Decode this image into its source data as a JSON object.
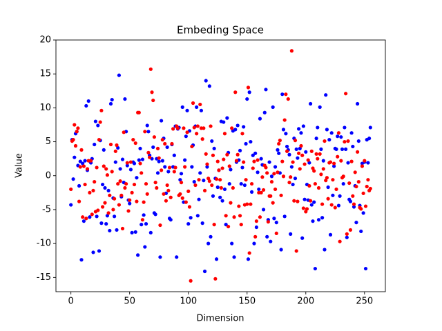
{
  "chart_data": {
    "type": "scatter",
    "title": "Embeding Space",
    "x_label": "Dimension",
    "y_label": "Value",
    "x": [
      0,
      1,
      2,
      3,
      4,
      5,
      6,
      7,
      8,
      9,
      10,
      11,
      12,
      13,
      14,
      15,
      16,
      17,
      18,
      19,
      20,
      21,
      22,
      23,
      24,
      25,
      26,
      27,
      28,
      29,
      30,
      31,
      32,
      33,
      34,
      35,
      36,
      37,
      38,
      39,
      40,
      41,
      42,
      43,
      44,
      45,
      46,
      47,
      48,
      49,
      50,
      51,
      52,
      53,
      54,
      55,
      56,
      57,
      58,
      59,
      60,
      61,
      62,
      63,
      64,
      65,
      66,
      67,
      68,
      69,
      70,
      71,
      72,
      73,
      74,
      75,
      76,
      77,
      78,
      79,
      80,
      81,
      82,
      83,
      84,
      85,
      86,
      87,
      88,
      89,
      90,
      91,
      92,
      93,
      94,
      95,
      96,
      97,
      98,
      99,
      100,
      101,
      102,
      103,
      104,
      105,
      106,
      107,
      108,
      109,
      110,
      111,
      112,
      113,
      114,
      115,
      116,
      117,
      118,
      119,
      120,
      121,
      122,
      123,
      124,
      125,
      126,
      127,
      128,
      129,
      130,
      131,
      132,
      133,
      134,
      135,
      136,
      137,
      138,
      139,
      140,
      141,
      142,
      143,
      144,
      145,
      146,
      147,
      148,
      149,
      150,
      151,
      152,
      153,
      154,
      155,
      156,
      157,
      158,
      159,
      160,
      161,
      162,
      163,
      164,
      165,
      166,
      167,
      168,
      169,
      170,
      171,
      172,
      173,
      174,
      175,
      176,
      177,
      178,
      179,
      180,
      181,
      182,
      183,
      184,
      185,
      186,
      187,
      188,
      189,
      190,
      191,
      192,
      193,
      194,
      195,
      196,
      197,
      198,
      199,
      200,
      201,
      202,
      203,
      204,
      205,
      206,
      207,
      208,
      209,
      210,
      211,
      212,
      213,
      214,
      215,
      216,
      217,
      218,
      219,
      220,
      221,
      222,
      223,
      224,
      225,
      226,
      227,
      228,
      229,
      230,
      231,
      232,
      233,
      234,
      235,
      236,
      237,
      238,
      239,
      240,
      241,
      242,
      243,
      244,
      245,
      246,
      247,
      248,
      249,
      250,
      251,
      252,
      253,
      254,
      255
    ],
    "series": [
      {
        "color": "#0000ff",
        "values": [
          -4.3,
          5.3,
          -0.5,
          2.7,
          6.2,
          6.5,
          1.5,
          -1.5,
          2.1,
          -12.4,
          1.8,
          -6.7,
          2.2,
          10.3,
          0.8,
          11.0,
          -6.1,
          1.9,
          2.5,
          -11.3,
          4.6,
          8.0,
          -6.0,
          7.4,
          -11.1,
          5.2,
          -7.0,
          -1.3,
          3.8,
          -1.8,
          -7.1,
          -5.9,
          -2.2,
          -8.1,
          10.6,
          11.2,
          -3.3,
          -6.0,
          2.0,
          -8.0,
          4.1,
          14.8,
          1.0,
          -3.1,
          2.4,
          -1.0,
          11.3,
          6.5,
          1.5,
          -3.6,
          -4.1,
          0.9,
          -8.4,
          2.0,
          1.8,
          -8.3,
          -0.3,
          -11.7,
          2.3,
          4.0,
          -7.2,
          2.4,
          -5.8,
          -10.5,
          -7.1,
          7.4,
          6.5,
          3.0,
          -8.4,
          2.5,
          4.2,
          -5.5,
          -5.7,
          2.5,
          0.4,
          2.1,
          -12.0,
          8.1,
          2.2,
          5.5,
          1.3,
          -2.6,
          4.2,
          0.6,
          -6.3,
          -6.5,
          4.6,
          1.3,
          3.0,
          7.3,
          -12.0,
          6.9,
          7.1,
          -0.6,
          0.3,
          10.1,
          -3.9,
          2.3,
          5.8,
          9.6,
          -7.1,
          6.6,
          -6.2,
          1.3,
          4.5,
          -0.9,
          7.3,
          10.1,
          -5.9,
          -3.5,
          0.4,
          9.6,
          -7.0,
          -0.7,
          -14.1,
          14.0,
          1.3,
          -10.0,
          13.2,
          -9.0,
          5.1,
          -3.0,
          4.0,
          -0.4,
          -12.3,
          -1.7,
          0.8,
          -3.2,
          8.0,
          -3.7,
          7.9,
          -2.0,
          -7.2,
          8.5,
          3.4,
          -1.2,
          0.9,
          -10.0,
          6.6,
          -12.0,
          6.8,
          2.0,
          7.4,
          2.3,
          3.7,
          -1.2,
          1.2,
          7.2,
          -1.4,
          4.7,
          11.3,
          -12.3,
          12.3,
          5.0,
          -2.4,
          3.0,
          -10.0,
          3.3,
          -7.6,
          0.5,
          -2.0,
          8.4,
          2.5,
          1.6,
          -5.0,
          9.3,
          12.7,
          -9.0,
          -6.5,
          2.0,
          -9.7,
          -0.1,
          10.1,
          -6.3,
          1.3,
          -6.9,
          3.8,
          3.3,
          0.4,
          -10.9,
          12.0,
          6.8,
          -6.0,
          6.2,
          4.3,
          3.8,
          3.1,
          -8.6,
          1.3,
          -1.3,
          5.5,
          -0.4,
          3.9,
          2.6,
          6.9,
          4.0,
          6.3,
          -9.2,
          7.3,
          -3.5,
          3.5,
          -1.3,
          -3.6,
          1.9,
          10.6,
          -4.3,
          -6.7,
          -3.9,
          -13.7,
          5.5,
          7.1,
          -6.5,
          10.1,
          3.9,
          -6.2,
          2.2,
          -10.9,
          11.9,
          6.8,
          -1.7,
          5.3,
          -8.7,
          6.3,
          -2.9,
          1.4,
          4.0,
          3.9,
          5.8,
          -4.4,
          -3.0,
          5.7,
          3.9,
          -1.2,
          7.1,
          3.9,
          -9.1,
          1.9,
          -3.5,
          -3.8,
          6.3,
          4.3,
          -4.6,
          -1.5,
          -6.9,
          10.6,
          5.1,
          -4.4,
          -8.2,
          1.8,
          -5.5,
          2.0,
          -13.7,
          5.3,
          1.9,
          5.5,
          7.1
        ]
      },
      {
        "color": "#ff0000",
        "values": [
          -2.0,
          5.1,
          5.3,
          7.5,
          4.4,
          6.5,
          7.0,
          -3.8,
          1.3,
          3.8,
          -6.1,
          1.4,
          -1.3,
          -6.3,
          1.0,
          2.2,
          -2.5,
          2.2,
          -5.7,
          -2.2,
          -0.9,
          -5.3,
          1.2,
          -5.1,
          5.3,
          7.9,
          9.6,
          -4.6,
          1.4,
          -4.0,
          1.0,
          0.1,
          -5.5,
          -2.9,
          4.6,
          0.6,
          -5.0,
          -3.4,
          3.6,
          4.5,
          -1.2,
          -4.3,
          -0.8,
          -2.9,
          -7.8,
          6.4,
          -1.8,
          -1.2,
          1.9,
          -5.2,
          -3.6,
          2.0,
          -2.5,
          5.3,
          -1.3,
          4.8,
          -3.8,
          9.3,
          9.3,
          1.8,
          0.4,
          -6.5,
          -3.9,
          6.5,
          -1.2,
          -2.7,
          3.4,
          2.7,
          15.7,
          12.3,
          11.1,
          5.7,
          -1.0,
          -1.8,
          4.0,
          2.6,
          -7.3,
          0.8,
          5.3,
          -2.7,
          4.7,
          -3.7,
          -1.4,
          -2.2,
          1.2,
          -3.2,
          4.7,
          6.9,
          0.6,
          1.2,
          7.3,
          7.0,
          -2.9,
          -2.7,
          -1.0,
          -3.3,
          7.0,
          1.3,
          -3.9,
          6.4,
          -2.3,
          -4.6,
          -15.5,
          4.3,
          10.7,
          7.1,
          -1.4,
          6.2,
          7.3,
          -0.6,
          10.5,
          7.0,
          5.4,
          7.0,
          -2.2,
          3.2,
          1.7,
          -0.4,
          -0.8,
          7.3,
          -1.4,
          3.0,
          -7.2,
          -15.2,
          -0.5,
          2.1,
          0.8,
          -0.6,
          -1.8,
          1.1,
          2.4,
          6.2,
          -5.9,
          3.1,
          -7.5,
          1.4,
          -4.0,
          7.0,
          -1.8,
          -6.1,
          12.3,
          2.2,
          3.1,
          -4.5,
          -5.9,
          -7.2,
          6.2,
          2.0,
          -4.3,
          -0.6,
          -4.2,
          13.0,
          -11.4,
          -4.2,
          -1.2,
          1.1,
          2.1,
          -9.0,
          -6.7,
          2.3,
          -2.5,
          -6.1,
          -2.5,
          -0.2,
          -2.1,
          1.5,
          1.2,
          0.4,
          -6.8,
          -3.0,
          -3.0,
          -0.9,
          -4.0,
          0.3,
          -2.0,
          -8.5,
          0.5,
          4.7,
          5.2,
          -2.9,
          2.1,
          -0.1,
          8.2,
          12.0,
          3.6,
          11.3,
          -1.0,
          -0.2,
          18.4,
          2.0,
          -3.7,
          5.2,
          -11.1,
          -3.8,
          3.3,
          1.0,
          4.4,
          3.0,
          -4.8,
          1.7,
          -5.3,
          -4.9,
          2.3,
          -1.5,
          -3.7,
          3.6,
          1.1,
          0.7,
          -1.2,
          3.2,
          2.5,
          -1.8,
          3.2,
          0.2,
          -4.2,
          1.0,
          5.1,
          -0.7,
          -0.3,
          -3.4,
          1.9,
          2.0,
          -4.3,
          -0.6,
          1.8,
          -4.7,
          -2.0,
          2.8,
          6.3,
          -9.7,
          2.2,
          -0.3,
          -0.1,
          5.0,
          12.1,
          -8.6,
          5.1,
          -1.1,
          -8.0,
          2.1,
          -3.0,
          -4.2,
          0.5,
          -1.6,
          3.5,
          -0.9,
          -4.7,
          -4.9,
          1.4,
          -2.6,
          2.2,
          -4.5,
          -1.6,
          -0.6,
          -2.2,
          -1.9
        ]
      }
    ],
    "xlim": [
      -12.75,
      267.75
    ],
    "xticks": [
      0,
      50,
      100,
      150,
      200,
      250
    ],
    "ylim": [
      -17.1,
      20.0
    ],
    "yticks": [
      -15,
      -10,
      -5,
      0,
      5,
      10,
      15,
      20
    ]
  }
}
